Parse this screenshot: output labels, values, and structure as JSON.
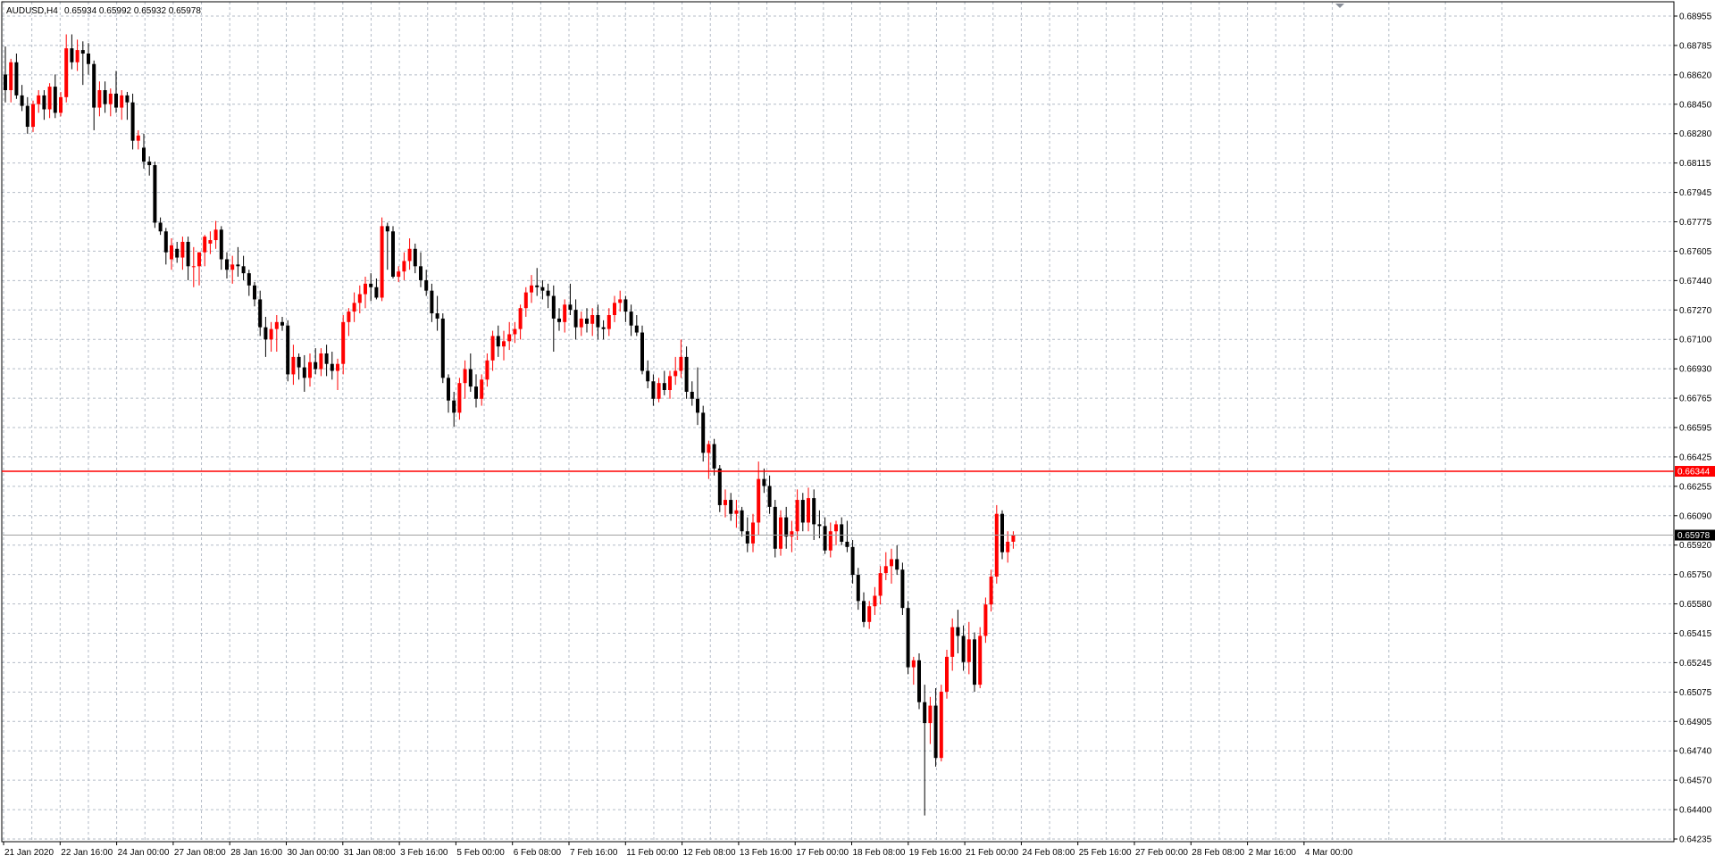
{
  "header": {
    "symbol": "AUDUSD,H4",
    "ohlc": "0.65934 0.65992 0.65932 0.65978"
  },
  "colors": {
    "background": "#ffffff",
    "grid": "#b4bcc7",
    "bull": "#ff0000",
    "bear": "#000000",
    "level_line": "#ff0000",
    "bid_line": "#a0a0a0"
  },
  "chart_data": {
    "type": "candlestick",
    "title": "AUDUSD,H4",
    "timeframe": "H4",
    "grid": true,
    "ylim": [
      0.64235,
      0.68955
    ],
    "y_ticks": [
      "0.68955",
      "0.68785",
      "0.68620",
      "0.68450",
      "0.68280",
      "0.68115",
      "0.67945",
      "0.67775",
      "0.67605",
      "0.67440",
      "0.67270",
      "0.67100",
      "0.66930",
      "0.66765",
      "0.66595",
      "0.66425",
      "0.66255",
      "0.66090",
      "0.65920",
      "0.65750",
      "0.65580",
      "0.65415",
      "0.65245",
      "0.65075",
      "0.64905",
      "0.64740",
      "0.64570",
      "0.64400",
      "0.64235"
    ],
    "x_ticks": [
      "21 Jan 2020",
      "22 Jan 16:00",
      "24 Jan 00:00",
      "27 Jan 08:00",
      "28 Jan 16:00",
      "30 Jan 00:00",
      "31 Jan 08:00",
      "3 Feb 16:00",
      "5 Feb 00:00",
      "6 Feb 08:00",
      "7 Feb 16:00",
      "11 Feb 00:00",
      "12 Feb 08:00",
      "13 Feb 16:00",
      "17 Feb 00:00",
      "18 Feb 08:00",
      "19 Feb 16:00",
      "21 Feb 00:00",
      "24 Feb 08:00",
      "25 Feb 16:00",
      "27 Feb 00:00",
      "28 Feb 08:00",
      "2 Mar 16:00",
      "4 Mar 00:00"
    ],
    "horizontal_line": {
      "value": 0.66344,
      "label": "0.66344"
    },
    "bid_line": {
      "value": 0.65978,
      "label": "0.65978"
    },
    "ohlc": [
      [
        0.6862,
        0.6878,
        0.6846,
        0.6853
      ],
      [
        0.6853,
        0.6871,
        0.6846,
        0.6869
      ],
      [
        0.6869,
        0.6874,
        0.6848,
        0.685
      ],
      [
        0.685,
        0.6856,
        0.6841,
        0.6844
      ],
      [
        0.6844,
        0.6849,
        0.6828,
        0.6832
      ],
      [
        0.6832,
        0.6847,
        0.6829,
        0.6845
      ],
      [
        0.6845,
        0.6853,
        0.684,
        0.685
      ],
      [
        0.685,
        0.6853,
        0.6836,
        0.6842
      ],
      [
        0.6842,
        0.6857,
        0.6837,
        0.6855
      ],
      [
        0.6855,
        0.6862,
        0.6837,
        0.684
      ],
      [
        0.684,
        0.6852,
        0.6838,
        0.6849
      ],
      [
        0.6849,
        0.6885,
        0.6846,
        0.6877
      ],
      [
        0.6877,
        0.6885,
        0.6865,
        0.6869
      ],
      [
        0.6869,
        0.6882,
        0.6864,
        0.6876
      ],
      [
        0.6876,
        0.6881,
        0.6856,
        0.6874
      ],
      [
        0.6874,
        0.688,
        0.6862,
        0.6868
      ],
      [
        0.6868,
        0.687,
        0.683,
        0.6843
      ],
      [
        0.6843,
        0.6858,
        0.6838,
        0.6853
      ],
      [
        0.6853,
        0.6858,
        0.684,
        0.6845
      ],
      [
        0.6845,
        0.6854,
        0.6838,
        0.6851
      ],
      [
        0.6851,
        0.6864,
        0.684,
        0.6843
      ],
      [
        0.6843,
        0.6853,
        0.6836,
        0.685
      ],
      [
        0.685,
        0.6852,
        0.6836,
        0.6846
      ],
      [
        0.6846,
        0.6851,
        0.6819,
        0.6824
      ],
      [
        0.6824,
        0.683,
        0.6819,
        0.6827
      ],
      [
        0.682,
        0.6828,
        0.6808,
        0.6812
      ],
      [
        0.6812,
        0.6815,
        0.6804,
        0.681
      ],
      [
        0.681,
        0.6812,
        0.6774,
        0.6777
      ],
      [
        0.6777,
        0.678,
        0.677,
        0.6772
      ],
      [
        0.6772,
        0.6774,
        0.6753,
        0.676
      ],
      [
        0.6756,
        0.6768,
        0.675,
        0.6764
      ],
      [
        0.6762,
        0.6766,
        0.6754,
        0.6757
      ],
      [
        0.6757,
        0.6769,
        0.675,
        0.6766
      ],
      [
        0.6766,
        0.6769,
        0.6744,
        0.6752
      ],
      [
        0.6752,
        0.6763,
        0.674,
        0.6752
      ],
      [
        0.6752,
        0.676,
        0.6741,
        0.676
      ],
      [
        0.676,
        0.677,
        0.6752,
        0.6769
      ],
      [
        0.6765,
        0.6772,
        0.6759,
        0.6767
      ],
      [
        0.6767,
        0.6778,
        0.6762,
        0.6773
      ],
      [
        0.6773,
        0.6775,
        0.675,
        0.6756
      ],
      [
        0.6756,
        0.676,
        0.6745,
        0.675
      ],
      [
        0.675,
        0.6758,
        0.6742,
        0.6753
      ],
      [
        0.6753,
        0.6763,
        0.6746,
        0.6752
      ],
      [
        0.6752,
        0.6758,
        0.6744,
        0.6748
      ],
      [
        0.6748,
        0.675,
        0.6735,
        0.6741
      ],
      [
        0.6741,
        0.6743,
        0.6729,
        0.6733
      ],
      [
        0.6733,
        0.6738,
        0.6712,
        0.6717
      ],
      [
        0.6717,
        0.6723,
        0.67,
        0.671
      ],
      [
        0.671,
        0.672,
        0.6703,
        0.6716
      ],
      [
        0.6716,
        0.6724,
        0.6703,
        0.672
      ],
      [
        0.672,
        0.6723,
        0.6715,
        0.6718
      ],
      [
        0.6718,
        0.6721,
        0.6686,
        0.669
      ],
      [
        0.669,
        0.6707,
        0.6684,
        0.67
      ],
      [
        0.67,
        0.6702,
        0.6687,
        0.6694
      ],
      [
        0.6694,
        0.6701,
        0.668,
        0.6688
      ],
      [
        0.6688,
        0.6702,
        0.6683,
        0.6697
      ],
      [
        0.6697,
        0.6705,
        0.669,
        0.6693
      ],
      [
        0.6693,
        0.6705,
        0.6689,
        0.6702
      ],
      [
        0.6702,
        0.6707,
        0.6689,
        0.6696
      ],
      [
        0.6696,
        0.6703,
        0.6687,
        0.6692
      ],
      [
        0.6692,
        0.6699,
        0.6681,
        0.6696
      ],
      [
        0.6696,
        0.6724,
        0.669,
        0.672
      ],
      [
        0.672,
        0.6728,
        0.6712,
        0.6726
      ],
      [
        0.6726,
        0.6737,
        0.672,
        0.6731
      ],
      [
        0.6731,
        0.6741,
        0.6725,
        0.6736
      ],
      [
        0.6736,
        0.6746,
        0.6728,
        0.6742
      ],
      [
        0.6742,
        0.6748,
        0.6732,
        0.674
      ],
      [
        0.674,
        0.6745,
        0.6733,
        0.6734
      ],
      [
        0.6734,
        0.678,
        0.6732,
        0.6775
      ],
      [
        0.6775,
        0.6777,
        0.675,
        0.6772
      ],
      [
        0.6772,
        0.6775,
        0.6745,
        0.6746
      ],
      [
        0.6746,
        0.6752,
        0.6743,
        0.6749
      ],
      [
        0.6749,
        0.676,
        0.6744,
        0.6755
      ],
      [
        0.6755,
        0.6768,
        0.675,
        0.6762
      ],
      [
        0.6762,
        0.6765,
        0.6748,
        0.6752
      ],
      [
        0.6752,
        0.676,
        0.674,
        0.6744
      ],
      [
        0.6744,
        0.675,
        0.6735,
        0.6738
      ],
      [
        0.6738,
        0.6742,
        0.672,
        0.6725
      ],
      [
        0.6725,
        0.6735,
        0.6715,
        0.6722
      ],
      [
        0.6722,
        0.6725,
        0.6685,
        0.6688
      ],
      [
        0.6688,
        0.669,
        0.6668,
        0.6675
      ],
      [
        0.6675,
        0.668,
        0.666,
        0.6668
      ],
      [
        0.6668,
        0.6688,
        0.6664,
        0.6685
      ],
      [
        0.6685,
        0.6698,
        0.6676,
        0.6693
      ],
      [
        0.6693,
        0.6702,
        0.668,
        0.6683
      ],
      [
        0.6683,
        0.669,
        0.6671,
        0.6676
      ],
      [
        0.6676,
        0.669,
        0.6672,
        0.6687
      ],
      [
        0.6687,
        0.6702,
        0.6683,
        0.6698
      ],
      [
        0.6698,
        0.6715,
        0.6692,
        0.6712
      ],
      [
        0.6712,
        0.6718,
        0.67,
        0.6706
      ],
      [
        0.6706,
        0.6715,
        0.6698,
        0.6709
      ],
      [
        0.6709,
        0.672,
        0.6704,
        0.6713
      ],
      [
        0.6713,
        0.672,
        0.6708,
        0.6716
      ],
      [
        0.6716,
        0.673,
        0.671,
        0.6728
      ],
      [
        0.6728,
        0.674,
        0.6723,
        0.6737
      ],
      [
        0.6737,
        0.6747,
        0.6731,
        0.6741
      ],
      [
        0.6741,
        0.6751,
        0.6735,
        0.674
      ],
      [
        0.674,
        0.6744,
        0.6733,
        0.6738
      ],
      [
        0.6738,
        0.6742,
        0.6728,
        0.6735
      ],
      [
        0.6735,
        0.6741,
        0.6703,
        0.6722
      ],
      [
        0.6722,
        0.6728,
        0.6715,
        0.672
      ],
      [
        0.672,
        0.6733,
        0.6714,
        0.673
      ],
      [
        0.673,
        0.6742,
        0.6724,
        0.6727
      ],
      [
        0.6727,
        0.6733,
        0.671,
        0.6717
      ],
      [
        0.6717,
        0.6726,
        0.6712,
        0.6722
      ],
      [
        0.6722,
        0.6728,
        0.6714,
        0.6719
      ],
      [
        0.6719,
        0.6728,
        0.6712,
        0.6724
      ],
      [
        0.6724,
        0.673,
        0.671,
        0.6717
      ],
      [
        0.6717,
        0.6721,
        0.671,
        0.6716
      ],
      [
        0.6716,
        0.6728,
        0.6712,
        0.6724
      ],
      [
        0.6724,
        0.6735,
        0.672,
        0.6731
      ],
      [
        0.6731,
        0.6738,
        0.6726,
        0.6733
      ],
      [
        0.6733,
        0.6735,
        0.672,
        0.6726
      ],
      [
        0.6726,
        0.673,
        0.6712,
        0.6718
      ],
      [
        0.6718,
        0.6724,
        0.6712,
        0.6714
      ],
      [
        0.6714,
        0.6718,
        0.669,
        0.6692
      ],
      [
        0.6692,
        0.6698,
        0.6682,
        0.6686
      ],
      [
        0.6686,
        0.669,
        0.6672,
        0.6676
      ],
      [
        0.6676,
        0.6688,
        0.6674,
        0.6685
      ],
      [
        0.6685,
        0.6692,
        0.6678,
        0.6681
      ],
      [
        0.6681,
        0.6692,
        0.6676,
        0.6689
      ],
      [
        0.6689,
        0.67,
        0.6684,
        0.6692
      ],
      [
        0.6692,
        0.671,
        0.6688,
        0.67
      ],
      [
        0.67,
        0.6706,
        0.6676,
        0.668
      ],
      [
        0.668,
        0.6686,
        0.6672,
        0.6676
      ],
      [
        0.6676,
        0.6694,
        0.6661,
        0.6668
      ],
      [
        0.6668,
        0.6672,
        0.664,
        0.6645
      ],
      [
        0.6645,
        0.6652,
        0.663,
        0.665
      ],
      [
        0.665,
        0.6653,
        0.6632,
        0.6636
      ],
      [
        0.6636,
        0.6638,
        0.6611,
        0.6615
      ],
      [
        0.6615,
        0.6624,
        0.6608,
        0.6618
      ],
      [
        0.6618,
        0.6622,
        0.6606,
        0.661
      ],
      [
        0.661,
        0.6618,
        0.6602,
        0.6612
      ],
      [
        0.6612,
        0.6614,
        0.6597,
        0.66
      ],
      [
        0.66,
        0.6608,
        0.6588,
        0.6593
      ],
      [
        0.6593,
        0.661,
        0.6588,
        0.6605
      ],
      [
        0.6605,
        0.664,
        0.6598,
        0.663
      ],
      [
        0.663,
        0.6636,
        0.6622,
        0.6626
      ],
      [
        0.6626,
        0.6632,
        0.661,
        0.6614
      ],
      [
        0.6614,
        0.6618,
        0.6585,
        0.659
      ],
      [
        0.659,
        0.6612,
        0.6586,
        0.6608
      ],
      [
        0.6608,
        0.6614,
        0.659,
        0.6597
      ],
      [
        0.6597,
        0.6606,
        0.6588,
        0.66
      ],
      [
        0.66,
        0.6624,
        0.6595,
        0.6618
      ],
      [
        0.6618,
        0.6622,
        0.66,
        0.6605
      ],
      [
        0.6605,
        0.6625,
        0.66,
        0.6619
      ],
      [
        0.6619,
        0.6624,
        0.6595,
        0.6604
      ],
      [
        0.6604,
        0.6612,
        0.6596,
        0.6603
      ],
      [
        0.6603,
        0.6608,
        0.6587,
        0.6589
      ],
      [
        0.6589,
        0.6605,
        0.6585,
        0.66
      ],
      [
        0.66,
        0.6606,
        0.6592,
        0.6604
      ],
      [
        0.6604,
        0.6608,
        0.6592,
        0.6594
      ],
      [
        0.6594,
        0.6606,
        0.6588,
        0.6591
      ],
      [
        0.6591,
        0.6595,
        0.657,
        0.6575
      ],
      [
        0.6575,
        0.6579,
        0.6555,
        0.656
      ],
      [
        0.656,
        0.6565,
        0.6545,
        0.6548
      ],
      [
        0.6548,
        0.656,
        0.6544,
        0.6557
      ],
      [
        0.6557,
        0.6568,
        0.6552,
        0.6563
      ],
      [
        0.6563,
        0.658,
        0.6558,
        0.6576
      ],
      [
        0.6576,
        0.6588,
        0.6572,
        0.658
      ],
      [
        0.658,
        0.659,
        0.657,
        0.6584
      ],
      [
        0.6584,
        0.6592,
        0.6575,
        0.6578
      ],
      [
        0.6578,
        0.6582,
        0.6552,
        0.6556
      ],
      [
        0.6556,
        0.656,
        0.6518,
        0.6522
      ],
      [
        0.6522,
        0.6528,
        0.6512,
        0.6526
      ],
      [
        0.6526,
        0.653,
        0.6498,
        0.6502
      ],
      [
        0.6502,
        0.6512,
        0.6437,
        0.649
      ],
      [
        0.649,
        0.6505,
        0.6478,
        0.65
      ],
      [
        0.65,
        0.651,
        0.6465,
        0.647
      ],
      [
        0.647,
        0.6512,
        0.6468,
        0.6508
      ],
      [
        0.6508,
        0.6532,
        0.6504,
        0.6528
      ],
      [
        0.6528,
        0.655,
        0.652,
        0.6545
      ],
      [
        0.6545,
        0.6555,
        0.653,
        0.654
      ],
      [
        0.654,
        0.6546,
        0.652,
        0.6525
      ],
      [
        0.6525,
        0.6548,
        0.6518,
        0.6538
      ],
      [
        0.6538,
        0.6542,
        0.6508,
        0.6512
      ],
      [
        0.6512,
        0.6545,
        0.651,
        0.654
      ],
      [
        0.654,
        0.6562,
        0.6536,
        0.6558
      ],
      [
        0.6558,
        0.6578,
        0.6554,
        0.6574
      ],
      [
        0.6574,
        0.6615,
        0.657,
        0.661
      ],
      [
        0.661,
        0.6612,
        0.6584,
        0.6588
      ],
      [
        0.6588,
        0.66,
        0.6582,
        0.6594
      ],
      [
        0.6594,
        0.66,
        0.659,
        0.6598
      ]
    ]
  }
}
